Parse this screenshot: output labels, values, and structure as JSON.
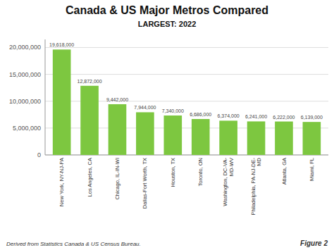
{
  "chart_data": {
    "type": "bar",
    "title": "Canada & US Major Metros Compared",
    "subtitle": "LARGEST: 2022",
    "categories": [
      "New York, NY-NJ-PA",
      "Los Angeles, CA",
      "Chicago, IL-IN-WI",
      "Dallas-Fort Worth, TX",
      "Houston, TX",
      "Toronto, ON",
      "Washington, DC-VA-\nMD-WV",
      "Philadelphia, PA-NJ-DE-\nMD",
      "Atlanta, GA",
      "Miami, FL"
    ],
    "values": [
      19618000,
      12872000,
      9442000,
      7944000,
      7340000,
      6686000,
      6374000,
      6241000,
      6222000,
      6139000
    ],
    "value_labels": [
      "19,618,000",
      "12,872,000",
      "9,442,000",
      "7,944,000",
      "7,340,000",
      "6,686,000",
      "6,374,000",
      "6,241,000",
      "6,222,000",
      "6,139,000"
    ],
    "data_labels": true,
    "color": "#7DC740",
    "ylim": [
      0,
      21500000
    ],
    "yticks": [
      0,
      {
        "value": 5000000,
        "label": "5,000,000"
      },
      {
        "value": 10000000,
        "label": "10,000,000"
      },
      {
        "value": 15000000,
        "label": "15,000,000"
      },
      {
        "value": 20000000,
        "label": "20,000,000"
      }
    ],
    "grid": true,
    "annotations": [
      "Derived from Statistics Canada & US Census Bureau.",
      "Figure 2"
    ]
  }
}
